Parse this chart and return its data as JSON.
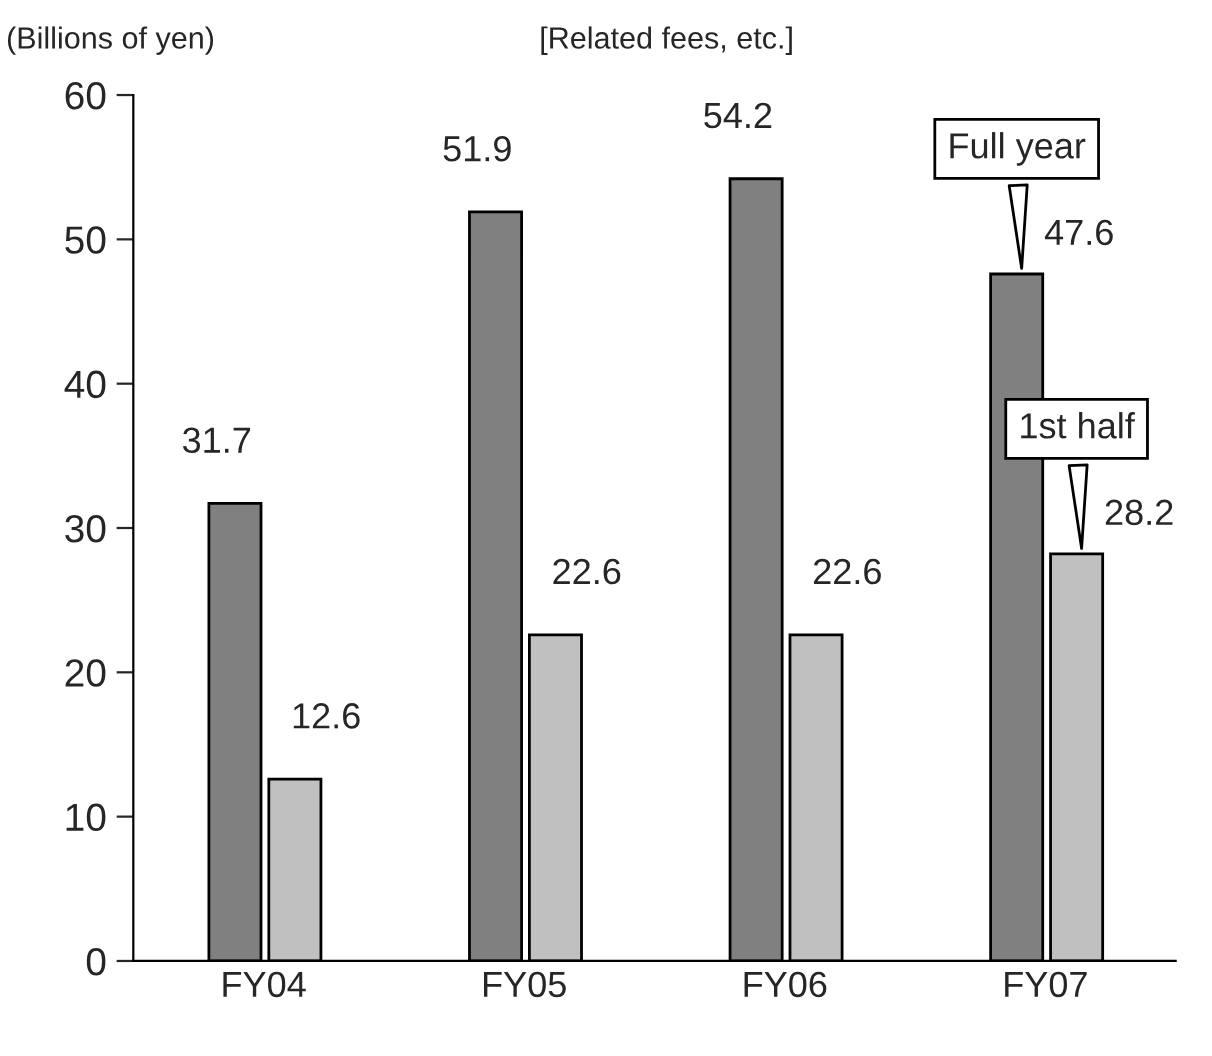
{
  "chart_data": {
    "type": "bar",
    "title": "[Related fees, etc.]",
    "ylabel": "(Billions of yen)",
    "categories": [
      "FY04",
      "FY05",
      "FY06",
      "FY07"
    ],
    "series": [
      {
        "name": "Full year",
        "color": "#808080",
        "values": [
          31.7,
          51.9,
          54.2,
          47.6
        ]
      },
      {
        "name": "1st half",
        "color": "#c0c0c0",
        "values": [
          12.6,
          22.6,
          22.6,
          28.2
        ]
      }
    ],
    "ylim": [
      0,
      60
    ],
    "yticks": [
      0,
      10,
      20,
      30,
      40,
      50,
      60
    ],
    "grid": false,
    "legend": false,
    "data_labels": true
  }
}
